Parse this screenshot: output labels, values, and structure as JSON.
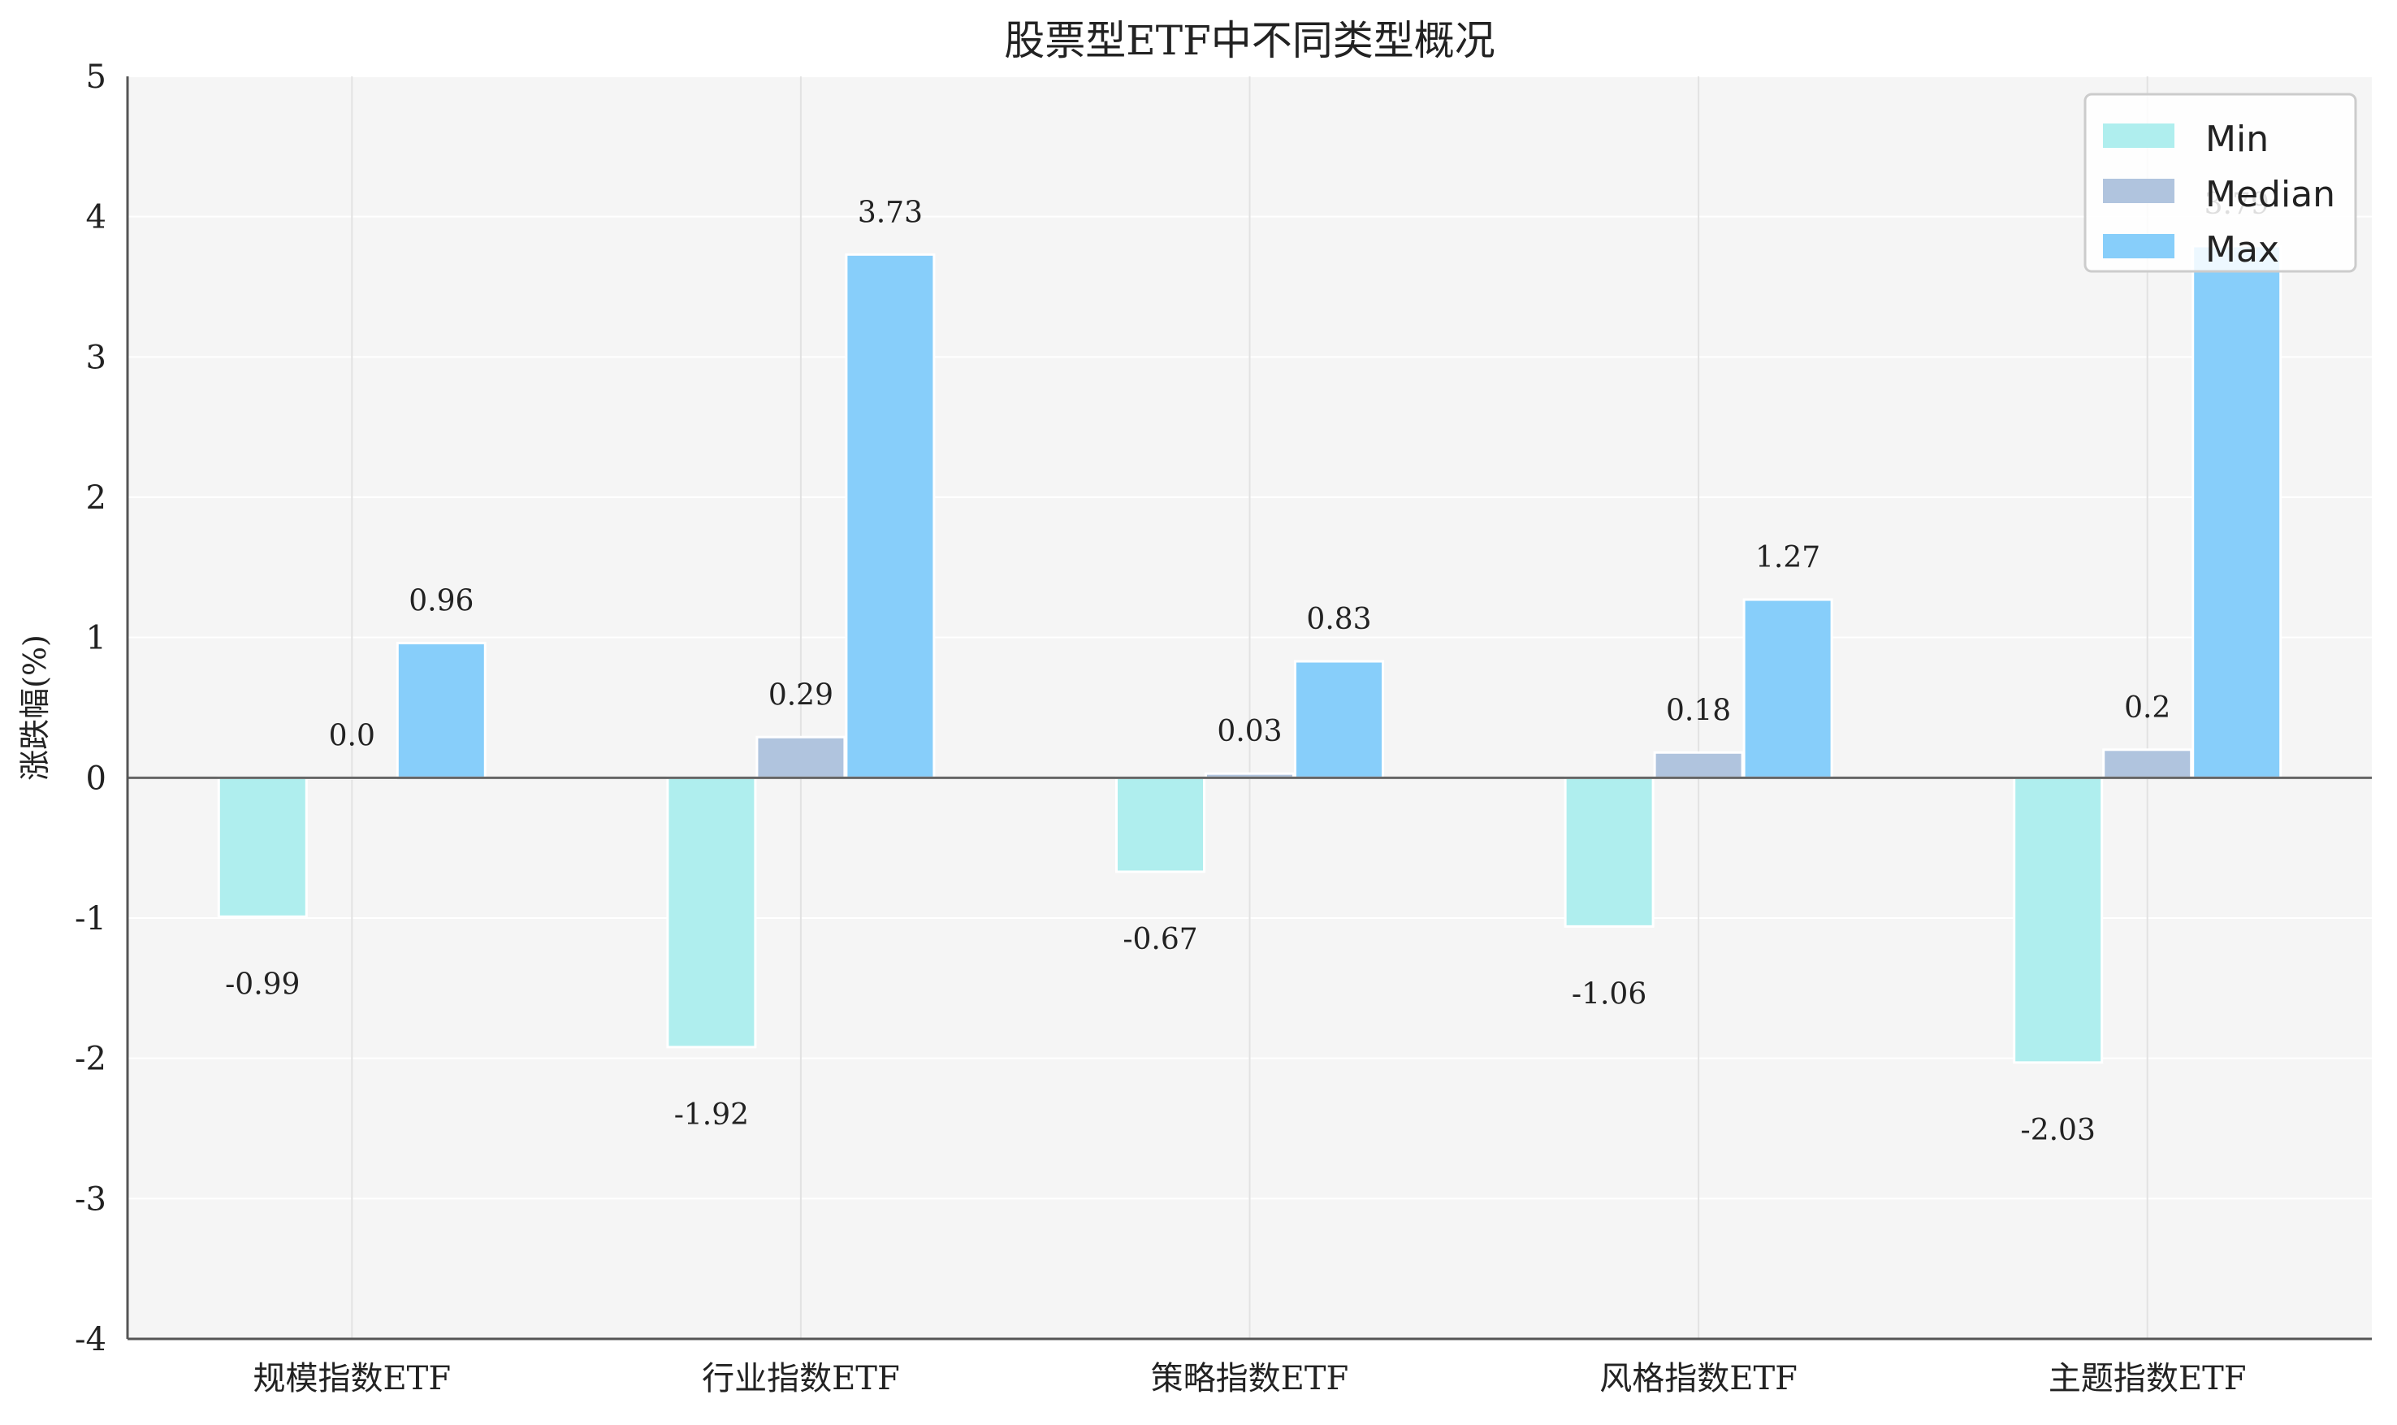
{
  "chart_data": {
    "type": "bar",
    "title": "股票型ETF中不同类型概况",
    "xlabel": "",
    "ylabel": "涨跌幅(%)",
    "ylim": [
      -4,
      5
    ],
    "yticks": [
      -4,
      -3,
      -2,
      -1,
      0,
      1,
      2,
      3,
      4,
      5
    ],
    "grid": true,
    "legend_position": "top-right",
    "categories": [
      "规模指数ETF",
      "行业指数ETF",
      "策略指数ETF",
      "风格指数ETF",
      "主题指数ETF"
    ],
    "series": [
      {
        "name": "Min",
        "color": "#AFEEEE",
        "values": [
          -0.99,
          -1.92,
          -0.67,
          -1.06,
          -2.03
        ],
        "labels": [
          "-0.99",
          "-1.92",
          "-0.67",
          "-1.06",
          "-2.03"
        ]
      },
      {
        "name": "Median",
        "color": "#B0C4DE",
        "values": [
          0.0,
          0.29,
          0.03,
          0.18,
          0.2
        ],
        "labels": [
          "0.0",
          "0.29",
          "0.03",
          "0.18",
          "0.2"
        ]
      },
      {
        "name": "Max",
        "color": "#87CEFA",
        "values": [
          0.96,
          3.73,
          0.83,
          1.27,
          3.79
        ],
        "labels": [
          "0.96",
          "3.73",
          "0.83",
          "1.27",
          "3.79"
        ]
      }
    ]
  }
}
